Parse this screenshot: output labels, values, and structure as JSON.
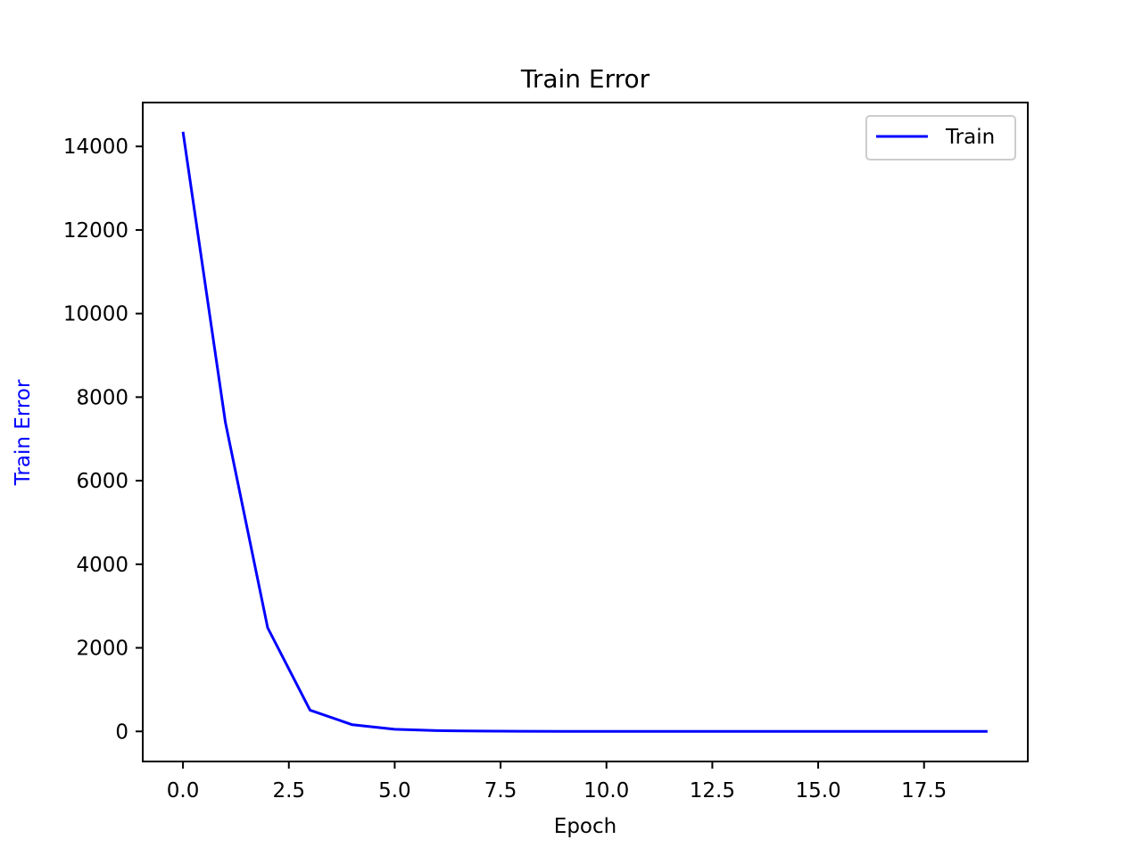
{
  "chart_data": {
    "type": "line",
    "title": "Train Error",
    "xlabel": "Epoch",
    "ylabel": "Train Error",
    "ylabel_color": "#0000ff",
    "xlim": [
      -0.95,
      19.95
    ],
    "ylim": [
      -720,
      15050
    ],
    "xticks": [
      0,
      2.5,
      5,
      7.5,
      10,
      12.5,
      15,
      17.5
    ],
    "xtick_labels": [
      "0.0",
      "2.5",
      "5.0",
      "7.5",
      "10.0",
      "12.5",
      "15.0",
      "17.5"
    ],
    "yticks": [
      0,
      2000,
      4000,
      6000,
      8000,
      10000,
      12000,
      14000
    ],
    "ytick_labels": [
      "0",
      "2000",
      "4000",
      "6000",
      "8000",
      "10000",
      "12000",
      "14000"
    ],
    "grid": false,
    "legend_position": "top-right",
    "series": [
      {
        "name": "Train",
        "color": "#0000ff",
        "x": [
          0,
          1,
          2,
          3,
          4,
          5,
          6,
          7,
          8,
          9,
          10,
          11,
          12,
          13,
          14,
          15,
          16,
          17,
          18,
          19
        ],
        "y": [
          14350,
          7400,
          2480,
          510,
          160,
          50,
          18,
          8,
          4,
          2,
          1,
          1,
          1,
          0,
          0,
          0,
          0,
          0,
          0,
          0
        ]
      }
    ]
  }
}
